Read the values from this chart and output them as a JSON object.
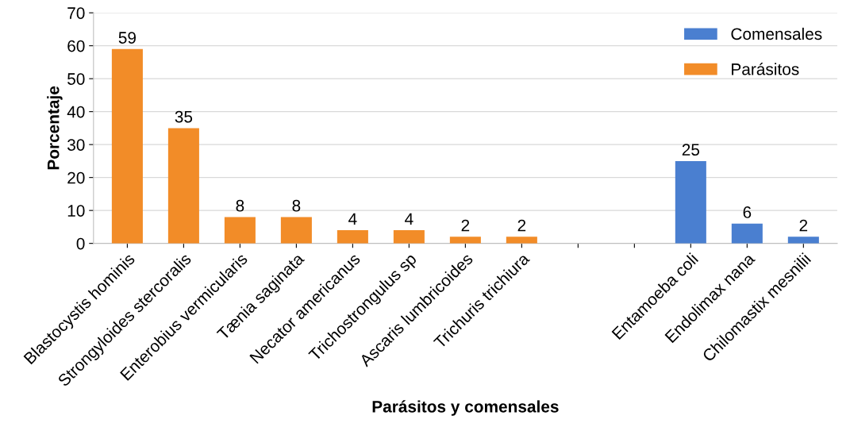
{
  "chart_data": {
    "type": "bar",
    "xlabel": "Parásitos y comensales",
    "ylabel": "Porcentaje",
    "categories": [
      "Blastocystis hominis",
      "Strongyloides stercoralis",
      "Enterobius vermicularis",
      "Tænia saginata",
      "Necator americanus",
      "Trichostrongulus sp",
      "Ascaris lumbricoides",
      "Trichuris trichiura",
      null,
      null,
      "Entamoeba coli",
      "Endolimax nana",
      "Chilomastix mesnilii"
    ],
    "series": [
      {
        "name": "Comensales",
        "color": "#4a7fd0",
        "values": [
          null,
          null,
          null,
          null,
          null,
          null,
          null,
          null,
          null,
          null,
          25,
          6,
          2
        ]
      },
      {
        "name": "Parásitos",
        "color": "#f28c28",
        "values": [
          59,
          35,
          8,
          8,
          4,
          4,
          2,
          2,
          null,
          null,
          null,
          null,
          null
        ]
      }
    ],
    "stacked": true,
    "ylim": [
      0,
      70
    ],
    "yticks": [
      0,
      10,
      20,
      30,
      40,
      50,
      60,
      70
    ],
    "grid": "y",
    "legend": "top right",
    "data_labels": true
  }
}
